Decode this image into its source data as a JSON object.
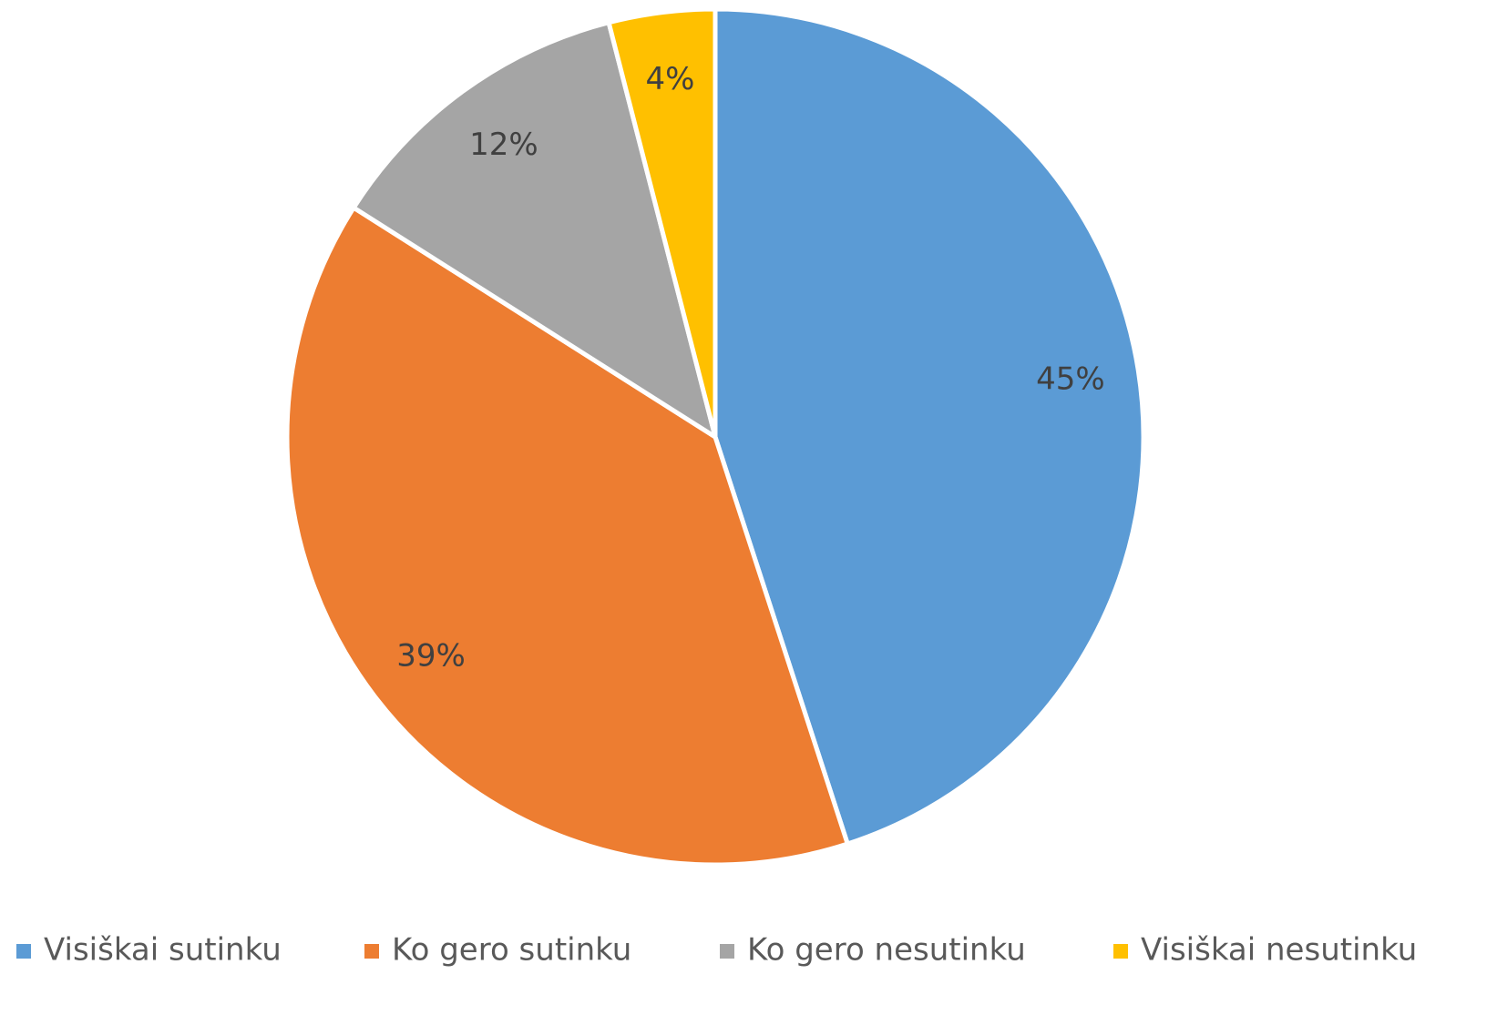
{
  "chart_data": {
    "type": "pie",
    "categories": [
      "Visiškai sutinku",
      "Ko gero sutinku",
      "Ko gero nesutinku",
      "Visiškai nesutinku"
    ],
    "values": [
      45,
      39,
      12,
      4
    ],
    "value_labels": [
      "45%",
      "39%",
      "12%",
      "4%"
    ],
    "colors": [
      "#5b9bd5",
      "#ed7d31",
      "#a5a5a5",
      "#ffc000"
    ],
    "legend": "bottom"
  }
}
